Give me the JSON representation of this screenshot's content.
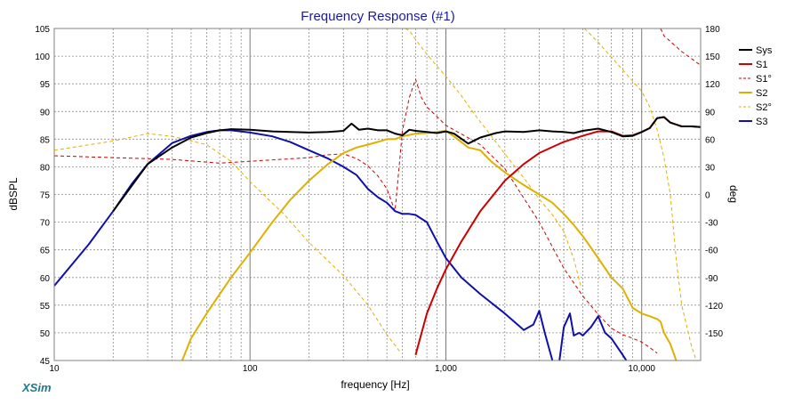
{
  "brand": "XSim",
  "chart_data": {
    "type": "line",
    "title": "Frequency Response (#1)",
    "xlabel": "frequency [Hz]",
    "ylabel": "dBSPL",
    "y2label": "deg",
    "xscale": "log",
    "xlim": [
      10,
      20000
    ],
    "ylim": [
      45,
      105
    ],
    "y2lim": [
      -180,
      180
    ],
    "x_tick_labels": [
      {
        "v": 10,
        "t": "10"
      },
      {
        "v": 100,
        "t": "100"
      },
      {
        "v": 1000,
        "t": "1,000"
      },
      {
        "v": 10000,
        "t": "10,000"
      }
    ],
    "y_ticks": [
      45,
      50,
      55,
      60,
      65,
      70,
      75,
      80,
      85,
      90,
      95,
      100,
      105
    ],
    "y2_ticks": [
      -150,
      -120,
      -90,
      -60,
      -30,
      0,
      30,
      60,
      90,
      120,
      150,
      180
    ],
    "y2_tick_labels": [
      "-150",
      "-120",
      "-90",
      "-60",
      "-30",
      "0",
      "30",
      "60",
      "90",
      "120",
      "150",
      "180"
    ],
    "grid": true,
    "legend_position": "right",
    "series": [
      {
        "name": "Sys",
        "color": "#000000",
        "style": "solid",
        "width": 2,
        "axis": "left",
        "x": [
          20,
          30,
          40,
          50,
          60,
          70,
          80,
          100,
          130,
          160,
          200,
          250,
          300,
          330,
          360,
          400,
          450,
          500,
          550,
          600,
          650,
          700,
          800,
          900,
          1000,
          1100,
          1300,
          1500,
          1800,
          2000,
          2500,
          3000,
          3500,
          4000,
          4500,
          5000,
          6000,
          7000,
          8000,
          9000,
          10000,
          11000,
          12000,
          13000,
          14000,
          16000,
          18000,
          20000
        ],
        "y": [
          72,
          80.5,
          83.5,
          85.3,
          86.1,
          86.6,
          86.8,
          86.7,
          86.4,
          86.3,
          86.2,
          86.3,
          86.5,
          87.8,
          86.7,
          86.9,
          86.6,
          86.6,
          86.0,
          85.7,
          86.7,
          86.5,
          86.3,
          86.1,
          86.4,
          86.0,
          84.2,
          85.3,
          86.1,
          86.4,
          86.3,
          86.6,
          86.4,
          86.3,
          86.1,
          86.5,
          86.9,
          86.3,
          85.5,
          85.6,
          86.3,
          87.0,
          88.8,
          89.0,
          88.0,
          87.3,
          87.3,
          87.2
        ]
      },
      {
        "name": "S1",
        "color": "#cc0000",
        "style": "solid",
        "width": 2,
        "axis": "left",
        "x": [
          700,
          800,
          900,
          1000,
          1200,
          1500,
          2000,
          2500,
          3000,
          4000,
          5000,
          6000,
          7000,
          8000,
          9000,
          10000,
          11000,
          12000,
          13000,
          14000,
          16000,
          18000,
          20000
        ],
        "y": [
          46,
          53.5,
          58,
          61.5,
          66.5,
          72,
          77.5,
          80.5,
          82.5,
          84.5,
          85.6,
          86.4,
          86.4,
          85.6,
          85.7,
          86.3,
          87.0,
          88.8,
          89.0,
          88.0,
          87.3,
          87.3,
          87.2
        ]
      },
      {
        "name": "S1°",
        "color": "#cc0000",
        "style": "dashed",
        "width": 1,
        "axis": "right",
        "x": [
          10,
          20,
          40,
          70,
          100,
          200,
          250,
          300,
          350,
          400,
          450,
          500,
          550,
          600,
          650,
          700,
          750,
          800,
          1000,
          1500,
          2000,
          3000,
          4000,
          5000,
          6000,
          7000,
          8000,
          9000,
          10000,
          11000,
          12000,
          12500,
          13000,
          16000,
          20000
        ],
        "y": [
          42,
          40,
          38,
          34,
          36,
          40,
          43,
          44,
          39,
          31,
          20,
          6,
          -18,
          69,
          105,
          125,
          105,
          95,
          75,
          54,
          28,
          -30,
          -80,
          -110,
          -130,
          -145,
          -152,
          -156,
          -160,
          -166,
          -172,
          180,
          172,
          155,
          140
        ]
      },
      {
        "name": "S2",
        "color": "#e0b000",
        "style": "solid",
        "width": 2,
        "axis": "left",
        "x": [
          45,
          50,
          60,
          70,
          80,
          100,
          130,
          160,
          200,
          250,
          300,
          350,
          400,
          450,
          500,
          550,
          600,
          700,
          800,
          900,
          1000,
          1100,
          1300,
          1500,
          1700,
          2000,
          2500,
          3000,
          3500,
          4000,
          4500,
          5000,
          6000,
          7000,
          8000,
          9000,
          10000,
          11000,
          12000,
          12500,
          13000,
          14000,
          15000,
          16000,
          18000,
          20000
        ],
        "y": [
          45,
          49,
          53.5,
          57,
          60,
          64.5,
          70,
          74,
          77.5,
          80.5,
          82.5,
          83.5,
          84,
          84.5,
          85.0,
          85.0,
          85.5,
          86.0,
          86.1,
          86.3,
          86.5,
          85.5,
          83.5,
          83.0,
          81.0,
          79.0,
          76.7,
          75.0,
          73.5,
          71.5,
          69.5,
          67.5,
          63.5,
          60,
          58,
          54.5,
          53.5,
          53.0,
          52.5,
          52,
          50,
          48,
          45,
          44,
          44,
          44
        ]
      },
      {
        "name": "S2°",
        "color": "#e0b000",
        "style": "dashed",
        "width": 1,
        "axis": "right",
        "x": [
          10,
          20,
          30,
          40,
          60,
          80,
          100,
          150,
          200,
          300,
          400,
          500,
          580,
          620,
          650,
          700,
          800,
          1000,
          1200,
          1400,
          1700,
          2000,
          2500,
          3000,
          3500,
          4000,
          4500,
          4900,
          5100,
          6000,
          8000,
          10000,
          11000,
          12000,
          13000,
          14000,
          15000,
          16000,
          18000,
          19000,
          20000
        ],
        "y": [
          48,
          58,
          66,
          63,
          54,
          36,
          14,
          -22,
          -52,
          -88,
          -120,
          -152,
          -170,
          180,
          178,
          168,
          152,
          128,
          107,
          87,
          64,
          44,
          18,
          -5,
          -22,
          -40,
          -70,
          -100,
          180,
          165,
          135,
          112,
          95,
          70,
          40,
          0,
          -70,
          -120,
          -165,
          -180,
          180
        ]
      },
      {
        "name": "S3",
        "color": "#1010aa",
        "style": "solid",
        "width": 2,
        "axis": "left",
        "x": [
          10,
          15,
          20,
          25,
          30,
          40,
          50,
          60,
          70,
          80,
          100,
          130,
          160,
          200,
          250,
          300,
          350,
          400,
          450,
          500,
          550,
          600,
          650,
          700,
          800,
          900,
          1000,
          1200,
          1500,
          2000,
          2500,
          2800,
          3000,
          3200,
          3500,
          3700,
          3800,
          4000,
          4300,
          4500,
          4800,
          5000,
          5500,
          6000,
          6500,
          7000,
          8000,
          8700
        ],
        "y": [
          58.5,
          66,
          72,
          77,
          80.5,
          84.3,
          85.6,
          86.3,
          86.6,
          86.6,
          86.2,
          85.5,
          84.5,
          83,
          81.5,
          80.0,
          78.5,
          76,
          74.5,
          73.5,
          72.0,
          71.5,
          71.5,
          71.3,
          70,
          66.5,
          63.5,
          60,
          57,
          53.5,
          50.5,
          51.5,
          54,
          50,
          45,
          44,
          45,
          51,
          53.5,
          49.5,
          50,
          49.5,
          51,
          53,
          50,
          49,
          46,
          44
        ]
      }
    ]
  }
}
